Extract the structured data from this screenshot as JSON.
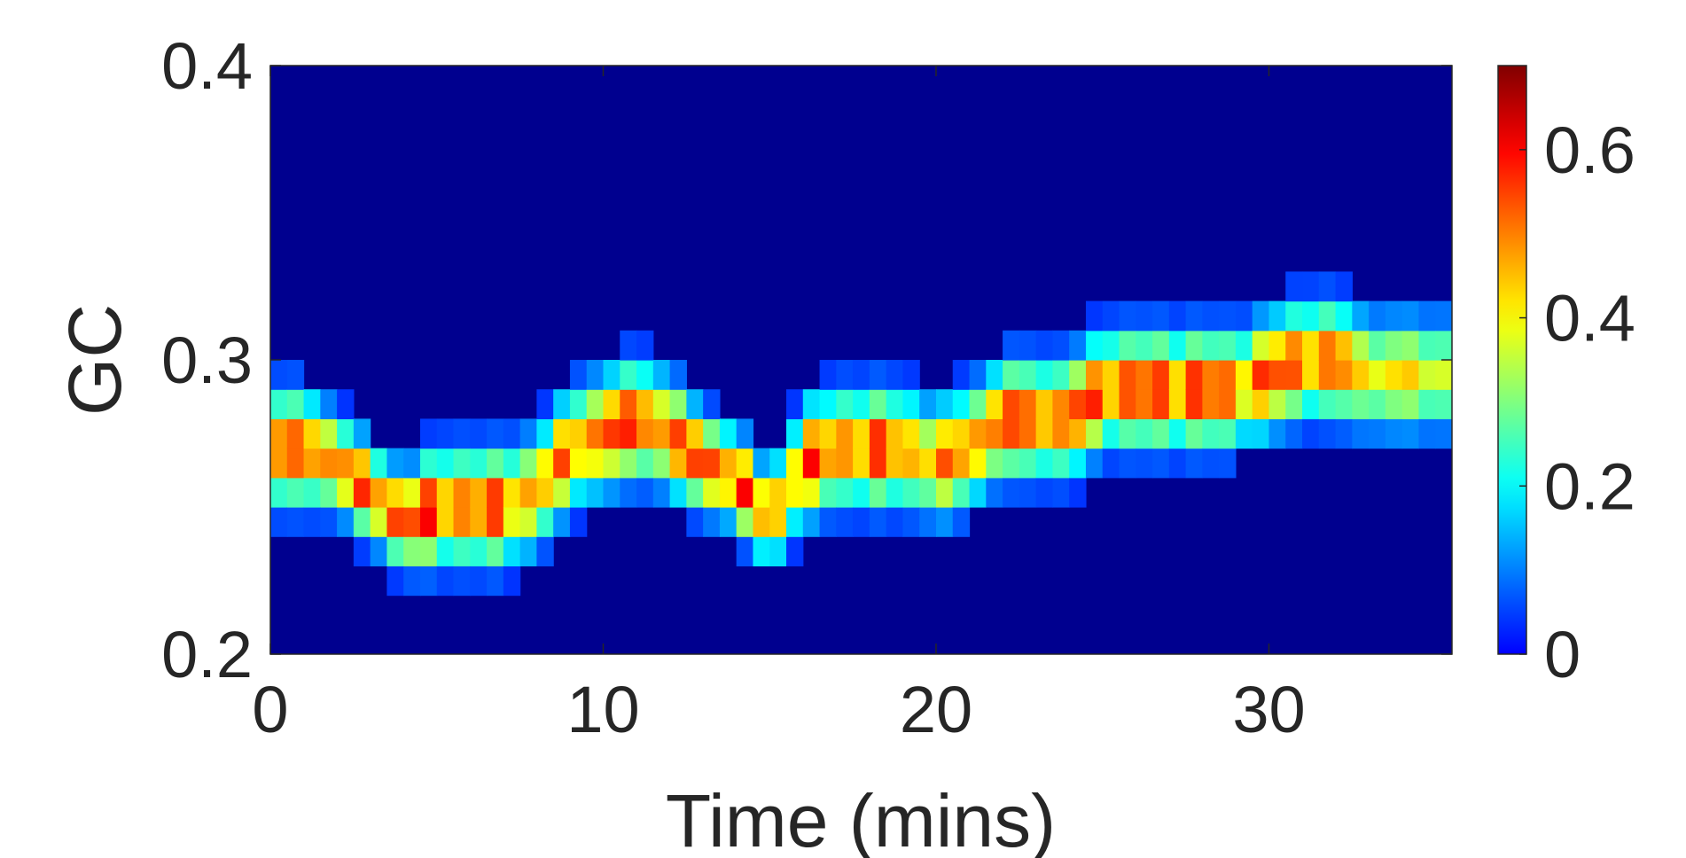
{
  "chart_data": {
    "type": "heatmap",
    "title": "",
    "xlabel": "Time (mins)",
    "ylabel": "GC",
    "xlim": [
      0,
      35.5
    ],
    "ylim": [
      0.2,
      0.4
    ],
    "x_ticks": [
      0,
      10,
      20,
      30
    ],
    "x_tick_labels": [
      "0",
      "10",
      "20",
      "30"
    ],
    "y_ticks": [
      0.2,
      0.3,
      0.4
    ],
    "y_tick_labels": [
      "0.2",
      "0.3",
      "0.4"
    ],
    "colormap": "jet",
    "background_color": "#00008f",
    "colorbar": {
      "placement": "right",
      "range": [
        0,
        0.7
      ],
      "ticks": [
        0,
        0.2,
        0.4,
        0.6
      ],
      "tick_labels": [
        "0",
        "0.2",
        "0.4",
        "0.6"
      ]
    },
    "bin_width_x": 0.5,
    "bin_height_y": 0.01,
    "ridge": {
      "description_units": "x in minutes, y in GC fraction, peak intensity on colorbar scale",
      "x": [
        0,
        1,
        2,
        3,
        4,
        5,
        6,
        7,
        8,
        9,
        10,
        11,
        12,
        13,
        14,
        15,
        16,
        17,
        18,
        19,
        20,
        21,
        22,
        23,
        24,
        25,
        26,
        27,
        28,
        29,
        30,
        31,
        32,
        33,
        34,
        35
      ],
      "y": [
        0.27,
        0.27,
        0.265,
        0.255,
        0.245,
        0.25,
        0.25,
        0.25,
        0.255,
        0.27,
        0.275,
        0.28,
        0.275,
        0.265,
        0.26,
        0.245,
        0.265,
        0.27,
        0.27,
        0.27,
        0.265,
        0.27,
        0.28,
        0.28,
        0.28,
        0.29,
        0.29,
        0.29,
        0.29,
        0.29,
        0.295,
        0.3,
        0.3,
        0.295,
        0.295,
        0.295
      ],
      "peak": [
        0.62,
        0.6,
        0.62,
        0.6,
        0.7,
        0.62,
        0.64,
        0.6,
        0.55,
        0.58,
        0.64,
        0.66,
        0.6,
        0.66,
        0.66,
        0.55,
        0.62,
        0.6,
        0.64,
        0.58,
        0.55,
        0.6,
        0.64,
        0.64,
        0.62,
        0.66,
        0.64,
        0.66,
        0.66,
        0.6,
        0.62,
        0.64,
        0.6,
        0.5,
        0.48,
        0.45
      ],
      "spread": [
        0.012,
        0.012,
        0.01,
        0.01,
        0.01,
        0.012,
        0.012,
        0.012,
        0.012,
        0.012,
        0.012,
        0.012,
        0.012,
        0.01,
        0.01,
        0.01,
        0.012,
        0.012,
        0.012,
        0.012,
        0.012,
        0.012,
        0.012,
        0.012,
        0.012,
        0.012,
        0.012,
        0.012,
        0.012,
        0.012,
        0.012,
        0.012,
        0.012,
        0.012,
        0.012,
        0.012
      ]
    }
  }
}
